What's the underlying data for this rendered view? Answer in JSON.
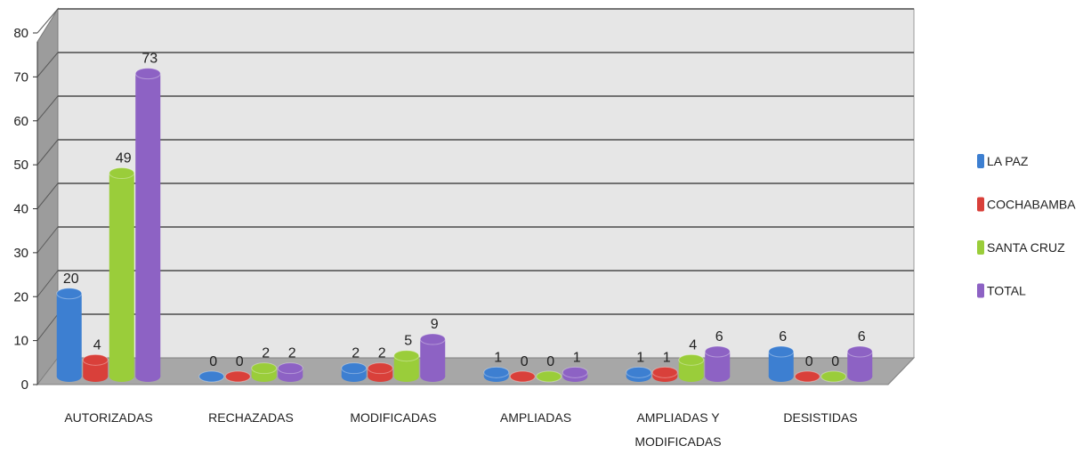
{
  "chart_data": {
    "type": "bar",
    "title": "",
    "xlabel": "",
    "ylabel": "",
    "ylim": [
      0,
      80
    ],
    "yticks": [
      0,
      10,
      20,
      30,
      40,
      50,
      60,
      70,
      80
    ],
    "grid": true,
    "legend_position": "right",
    "categories": [
      [
        "AUTORIZADAS"
      ],
      [
        "RECHAZADAS"
      ],
      [
        "MODIFICADAS"
      ],
      [
        "AMPLIADAS"
      ],
      [
        "AMPLIADAS Y",
        "MODIFICADAS"
      ],
      [
        "DESISTIDAS"
      ]
    ],
    "series": [
      {
        "name": "LA PAZ",
        "color": "#3d7fd1",
        "values": [
          20,
          0,
          2,
          1,
          1,
          6
        ]
      },
      {
        "name": "COCHABAMBA",
        "color": "#d9403a",
        "values": [
          4,
          0,
          2,
          0,
          1,
          0
        ]
      },
      {
        "name": "SANTA CRUZ",
        "color": "#9acd3a",
        "values": [
          49,
          2,
          5,
          0,
          4,
          0
        ]
      },
      {
        "name": "TOTAL",
        "color": "#8d62c4",
        "values": [
          73,
          2,
          9,
          1,
          6,
          6
        ]
      }
    ]
  }
}
